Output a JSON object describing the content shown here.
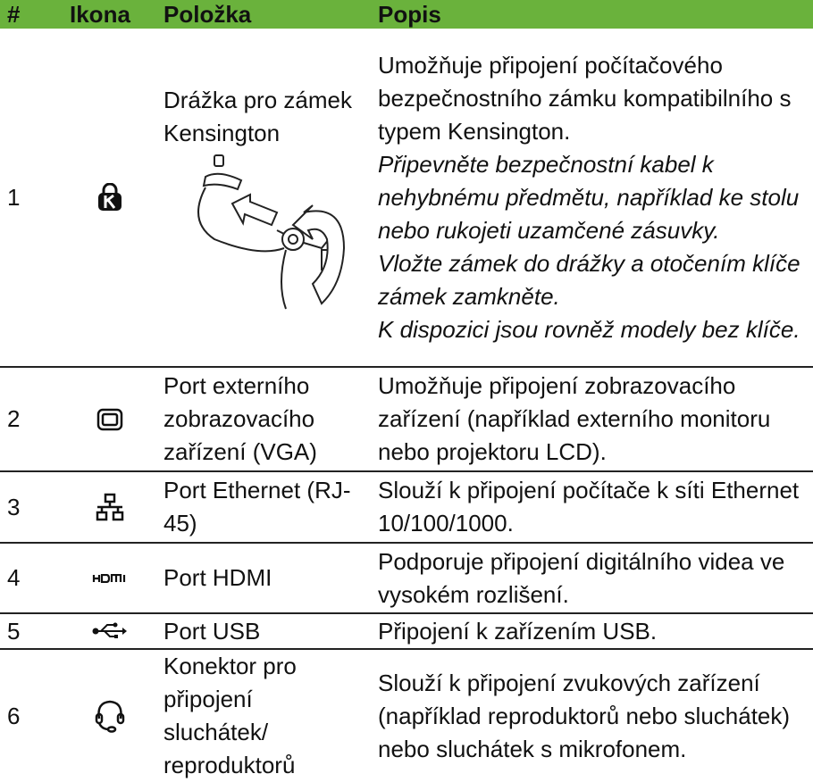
{
  "table": {
    "header": [
      "#",
      "Ikona",
      "Položka",
      "Popis"
    ],
    "rows": [
      {
        "number": "1",
        "item": "Drážka pro zámek Kensington",
        "description": "Umožňuje připojení počítačového bezpečnostního zámku kompatibilního s typem Kensington.",
        "notes": [
          "Připevněte bezpečnostní kabel k nehybnému předmětu, například ke stolu nebo rukojeti uzamčené zásuvky.",
          "Vložte zámek do drážky a otočením klíče zámek zamkněte.",
          "K dispozici jsou rovněž modely bez klíče."
        ]
      },
      {
        "number": "2",
        "item": "Port externího zobrazovacího zařízení (VGA)",
        "description": "Umožňuje připojení zobrazovacího zařízení (například externího monitoru nebo projektoru LCD)."
      },
      {
        "number": "3",
        "item": "Port Ethernet (RJ-45)",
        "description": "Slouží k připojení počítače k síti Ethernet 10/100/1000."
      },
      {
        "number": "4",
        "item": "Port HDMI",
        "description": "Podporuje připojení digitálního videa ve vysokém rozlišení."
      },
      {
        "number": "5",
        "item": "Port USB",
        "description": "Připojení k zařízením USB."
      },
      {
        "number": "6",
        "item": "Konektor pro připojení sluchátek/ reproduktorů",
        "description": "Slouží k připojení zvukových zařízení (například reproduktorů nebo sluchátek) nebo sluchátek s mikrofonem."
      }
    ]
  }
}
